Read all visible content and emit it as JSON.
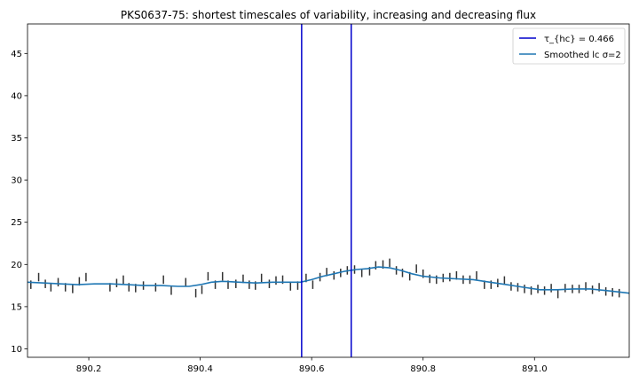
{
  "chart_data": {
    "type": "line",
    "title": "PKS0637-75: shortest timescales of variability, increasing and decreasing flux",
    "xlabel": "",
    "ylabel": "",
    "xlim": [
      890.09,
      891.17
    ],
    "ylim": [
      9.0,
      48.5
    ],
    "xticks": [
      890.2,
      890.4,
      890.6,
      890.8,
      891.0
    ],
    "xtick_labels": [
      "890.2",
      "890.4",
      "890.6",
      "890.8",
      "891.0"
    ],
    "yticks": [
      10,
      15,
      20,
      25,
      30,
      35,
      40,
      45
    ],
    "ytick_labels": [
      "10",
      "15",
      "20",
      "25",
      "30",
      "35",
      "40",
      "45"
    ],
    "grid": false,
    "legend_position": "top-right",
    "legend": [
      {
        "label": "τ_{hc} = 0.466",
        "kind": "vline",
        "color": "#0000cc"
      },
      {
        "label": "Smoothed lc σ=2",
        "kind": "line",
        "color": "#1f77b4"
      }
    ],
    "vlines": [
      {
        "x": 890.582,
        "color": "#0000cc"
      },
      {
        "x": 890.671,
        "color": "#0000cc"
      }
    ],
    "error_bars": {
      "color": "#333333",
      "points": [
        [
          890.096,
          17.6,
          0.5
        ],
        [
          890.11,
          18.5,
          0.5
        ],
        [
          890.122,
          17.7,
          0.5
        ],
        [
          890.132,
          17.3,
          0.5
        ],
        [
          890.145,
          17.9,
          0.5
        ],
        [
          890.158,
          17.3,
          0.5
        ],
        [
          890.171,
          17.1,
          0.5
        ],
        [
          890.183,
          18.0,
          0.5
        ],
        [
          890.195,
          18.5,
          0.5
        ],
        [
          890.238,
          17.3,
          0.5
        ],
        [
          890.25,
          17.8,
          0.5
        ],
        [
          890.262,
          18.2,
          0.5
        ],
        [
          890.272,
          17.3,
          0.5
        ],
        [
          890.284,
          17.2,
          0.5
        ],
        [
          890.298,
          17.5,
          0.5
        ],
        [
          890.32,
          17.3,
          0.5
        ],
        [
          890.334,
          18.2,
          0.5
        ],
        [
          890.348,
          16.9,
          0.5
        ],
        [
          890.374,
          17.9,
          0.5
        ],
        [
          890.392,
          16.6,
          0.5
        ],
        [
          890.403,
          17.0,
          0.5
        ],
        [
          890.414,
          18.6,
          0.5
        ],
        [
          890.427,
          17.6,
          0.5
        ],
        [
          890.44,
          18.6,
          0.5
        ],
        [
          890.45,
          17.6,
          0.5
        ],
        [
          890.464,
          17.7,
          0.5
        ],
        [
          890.477,
          18.3,
          0.5
        ],
        [
          890.488,
          17.6,
          0.5
        ],
        [
          890.499,
          17.5,
          0.5
        ],
        [
          890.51,
          18.4,
          0.5
        ],
        [
          890.524,
          17.7,
          0.5
        ],
        [
          890.536,
          18.1,
          0.5
        ],
        [
          890.548,
          18.2,
          0.5
        ],
        [
          890.562,
          17.4,
          0.5
        ],
        [
          890.575,
          17.5,
          0.5
        ],
        [
          890.59,
          18.4,
          0.5
        ],
        [
          890.602,
          17.6,
          0.5
        ],
        [
          890.615,
          18.5,
          0.5
        ],
        [
          890.627,
          19.1,
          0.5
        ],
        [
          890.64,
          18.7,
          0.5
        ],
        [
          890.652,
          19.0,
          0.5
        ],
        [
          890.664,
          19.3,
          0.5
        ],
        [
          890.677,
          19.4,
          0.5
        ],
        [
          890.69,
          19.0,
          0.5
        ],
        [
          890.704,
          19.2,
          0.5
        ],
        [
          890.715,
          19.9,
          0.5
        ],
        [
          890.728,
          20.0,
          0.5
        ],
        [
          890.74,
          20.2,
          0.5
        ],
        [
          890.752,
          19.3,
          0.5
        ],
        [
          890.763,
          19.0,
          0.5
        ],
        [
          890.776,
          18.6,
          0.5
        ],
        [
          890.788,
          19.5,
          0.5
        ],
        [
          890.8,
          18.9,
          0.5
        ],
        [
          890.812,
          18.3,
          0.5
        ],
        [
          890.824,
          18.2,
          0.5
        ],
        [
          890.836,
          18.4,
          0.5
        ],
        [
          890.848,
          18.5,
          0.5
        ],
        [
          890.86,
          18.7,
          0.5
        ],
        [
          890.872,
          18.2,
          0.5
        ],
        [
          890.884,
          18.2,
          0.5
        ],
        [
          890.896,
          18.7,
          0.5
        ],
        [
          890.91,
          17.6,
          0.5
        ],
        [
          890.922,
          17.6,
          0.5
        ],
        [
          890.934,
          17.8,
          0.5
        ],
        [
          890.946,
          18.1,
          0.5
        ],
        [
          890.958,
          17.4,
          0.5
        ],
        [
          890.97,
          17.3,
          0.5
        ],
        [
          890.982,
          17.1,
          0.5
        ],
        [
          890.994,
          16.9,
          0.5
        ],
        [
          891.006,
          17.1,
          0.5
        ],
        [
          891.018,
          16.9,
          0.5
        ],
        [
          891.03,
          17.2,
          0.5
        ],
        [
          891.042,
          16.5,
          0.5
        ],
        [
          891.055,
          17.2,
          0.5
        ],
        [
          891.068,
          17.1,
          0.5
        ],
        [
          891.08,
          17.1,
          0.5
        ],
        [
          891.092,
          17.4,
          0.5
        ],
        [
          891.104,
          17.0,
          0.5
        ],
        [
          891.116,
          17.3,
          0.5
        ],
        [
          891.128,
          16.8,
          0.5
        ],
        [
          891.14,
          16.7,
          0.5
        ],
        [
          891.152,
          16.6,
          0.5
        ]
      ]
    },
    "series": [
      {
        "name": "Smoothed lc σ=2",
        "color": "#1f77b4",
        "x": [
          890.09,
          890.12,
          890.15,
          890.18,
          890.21,
          890.24,
          890.27,
          890.3,
          890.33,
          890.36,
          890.38,
          890.4,
          890.42,
          890.44,
          890.47,
          890.5,
          890.53,
          890.56,
          890.58,
          890.6,
          890.62,
          890.64,
          890.66,
          890.68,
          890.7,
          890.72,
          890.74,
          890.76,
          890.78,
          890.8,
          890.83,
          890.86,
          890.89,
          890.92,
          890.95,
          890.98,
          891.01,
          891.04,
          891.07,
          891.1,
          891.13,
          891.17
        ],
        "y": [
          17.9,
          17.8,
          17.7,
          17.6,
          17.7,
          17.7,
          17.6,
          17.5,
          17.5,
          17.4,
          17.4,
          17.6,
          17.9,
          18.0,
          17.9,
          17.8,
          17.9,
          17.9,
          17.9,
          18.2,
          18.6,
          18.9,
          19.2,
          19.4,
          19.5,
          19.7,
          19.6,
          19.3,
          18.9,
          18.6,
          18.4,
          18.3,
          18.2,
          17.9,
          17.6,
          17.3,
          17.0,
          17.0,
          17.1,
          17.1,
          16.9,
          16.6
        ]
      }
    ]
  }
}
